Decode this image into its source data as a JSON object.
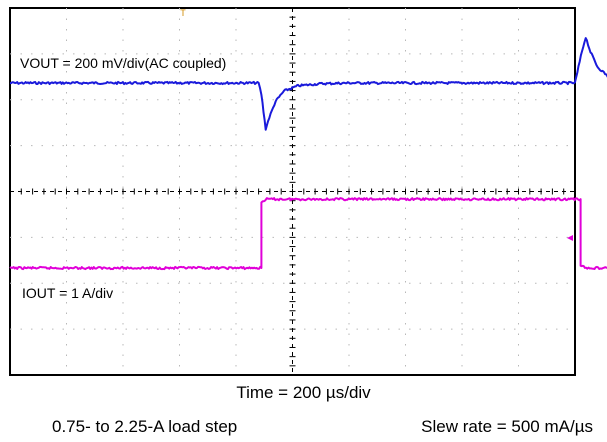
{
  "chart_data": {
    "type": "line",
    "title": "",
    "x_unit": "µs",
    "x_divisions": 10,
    "y_divisions": 8,
    "timebase_label": "Time = 200 µs/div",
    "footnotes": {
      "load_step": "0.75- to 2.25-A load step",
      "slew_rate": "Slew rate = 500 mA/µs"
    },
    "grid": true,
    "series": [
      {
        "name": "VOUT",
        "label": "VOUT = 200 mV/div(AC coupled)",
        "color": "#1a1adb",
        "unit": "mV",
        "scale_per_div": 200,
        "points": [
          [
            0,
            0
          ],
          [
            880,
            0
          ],
          [
            890,
            -50
          ],
          [
            905,
            -200
          ],
          [
            918,
            -150
          ],
          [
            940,
            -80
          ],
          [
            970,
            -35
          ],
          [
            1020,
            -12
          ],
          [
            1100,
            -3
          ],
          [
            1200,
            0
          ],
          [
            2000,
            0
          ],
          [
            2025,
            140
          ],
          [
            2038,
            200
          ],
          [
            2055,
            135
          ],
          [
            2080,
            70
          ],
          [
            2120,
            25
          ],
          [
            2180,
            6
          ],
          [
            2300,
            0
          ],
          [
            3000,
            0
          ]
        ]
      },
      {
        "name": "IOUT",
        "label": "IOUT = 1 A/div",
        "color": "#e000d8",
        "unit": "A",
        "scale_per_div": 1,
        "points": [
          [
            0,
            0.75
          ],
          [
            890,
            0.75
          ],
          [
            890,
            2.18
          ],
          [
            905,
            2.25
          ],
          [
            2020,
            2.25
          ],
          [
            2020,
            0.82
          ],
          [
            2035,
            0.75
          ],
          [
            3000,
            0.75
          ]
        ]
      }
    ]
  }
}
